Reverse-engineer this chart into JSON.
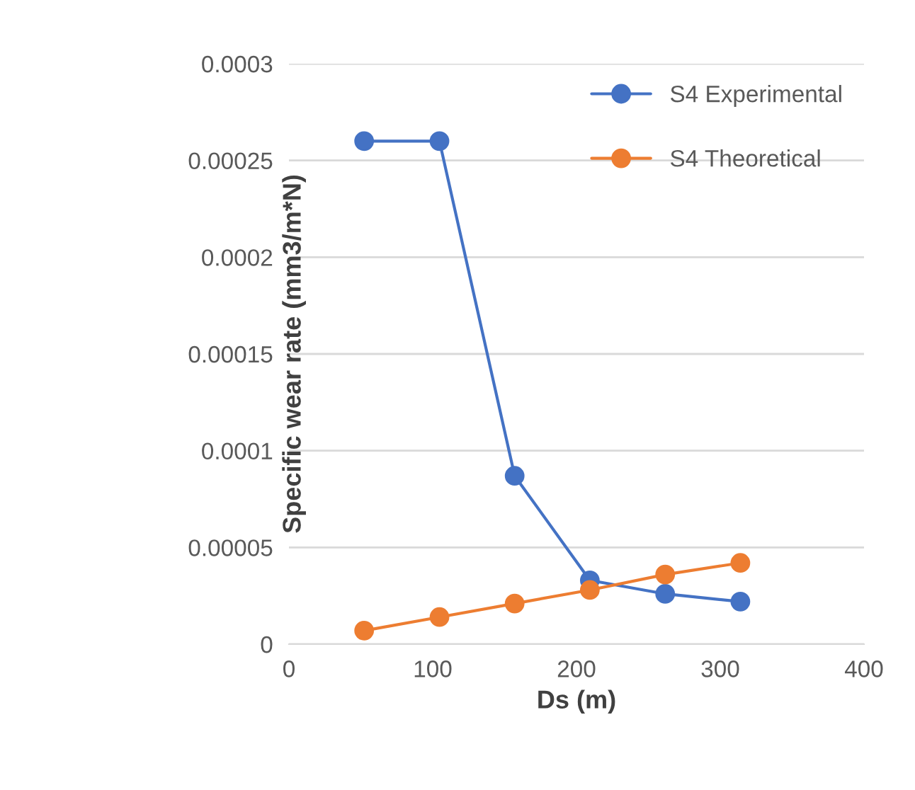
{
  "chart_data": {
    "type": "line",
    "xlabel": "Ds (m)",
    "ylabel": "Specific wear rate (mm3/m*N)",
    "series": [
      {
        "name": "S4 Experimental",
        "color": "#4472c4",
        "x": [
          52.3,
          104.7,
          157,
          209.3,
          261.7,
          314
        ],
        "values": [
          0.00026,
          0.00026,
          8.7e-05,
          3.3e-05,
          2.6e-05,
          2.2e-05
        ]
      },
      {
        "name": "S4 Theoretical",
        "color": "#ed7d31",
        "x": [
          52.3,
          104.7,
          157,
          209.3,
          261.7,
          314
        ],
        "values": [
          7e-06,
          1.4e-05,
          2.1e-05,
          2.8e-05,
          3.6e-05,
          4.2e-05
        ]
      }
    ],
    "xlim": [
      0,
      400
    ],
    "xticks": [
      0,
      100,
      200,
      300,
      400
    ],
    "ylim": [
      0,
      0.0003
    ],
    "yticks": [
      {
        "value": 0,
        "label": "0"
      },
      {
        "value": 5e-05,
        "label": "0.00005"
      },
      {
        "value": 0.0001,
        "label": "0.0001"
      },
      {
        "value": 0.00015,
        "label": "0.00015"
      },
      {
        "value": 0.0002,
        "label": "0.0002"
      },
      {
        "value": 0.00025,
        "label": "0.00025"
      },
      {
        "value": 0.0003,
        "label": "0.0003"
      }
    ],
    "grid": "y",
    "legend": "top right",
    "marker": "circle",
    "line_style": "solid"
  }
}
